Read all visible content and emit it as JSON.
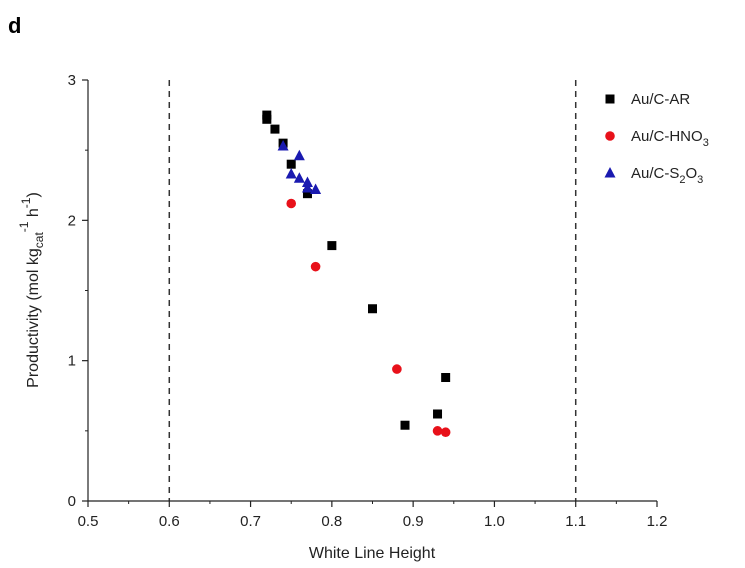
{
  "panel_label": "d",
  "chart_data": {
    "type": "scatter",
    "title": "",
    "xlabel": "White Line Height",
    "ylabel": {
      "main": "Productivity (mol kg",
      "sub_cat": "cat",
      "sup_neg1a": "-1",
      "mid": " h",
      "sup_neg1b": "-1",
      "tail": ")"
    },
    "xlim": [
      0.5,
      1.2
    ],
    "ylim": [
      0,
      3
    ],
    "xticks": [
      "0.5",
      "0.6",
      "0.7",
      "0.8",
      "0.9",
      "1.0",
      "1.1",
      "1.2"
    ],
    "yticks": [
      "0",
      "1",
      "2",
      "3"
    ],
    "reference_lines_x": [
      0.6,
      1.1
    ],
    "grid": false,
    "legend_position": "top-right",
    "series": [
      {
        "name": "Au/C-AR",
        "name_parts": [
          "Au/C-AR"
        ],
        "marker": "square",
        "color": "#000000",
        "points": [
          [
            0.72,
            2.75
          ],
          [
            0.72,
            2.72
          ],
          [
            0.73,
            2.65
          ],
          [
            0.74,
            2.55
          ],
          [
            0.75,
            2.4
          ],
          [
            0.77,
            2.19
          ],
          [
            0.8,
            1.82
          ],
          [
            0.85,
            1.37
          ],
          [
            0.89,
            0.54
          ],
          [
            0.93,
            0.62
          ],
          [
            0.94,
            0.88
          ]
        ]
      },
      {
        "name": "Au/C-HNO3",
        "name_parts": [
          "Au/C-HNO",
          "3"
        ],
        "marker": "circle",
        "color": "#e8111a",
        "points": [
          [
            0.75,
            2.12
          ],
          [
            0.78,
            1.67
          ],
          [
            0.88,
            0.94
          ],
          [
            0.93,
            0.5
          ],
          [
            0.94,
            0.49
          ]
        ]
      },
      {
        "name": "Au/C-S2O3",
        "name_parts": [
          "Au/C-S",
          "2",
          "O",
          "3"
        ],
        "marker": "triangle",
        "color": "#1a1ab0",
        "points": [
          [
            0.74,
            2.53
          ],
          [
            0.76,
            2.46
          ],
          [
            0.75,
            2.33
          ],
          [
            0.76,
            2.3
          ],
          [
            0.77,
            2.27
          ],
          [
            0.77,
            2.23
          ],
          [
            0.78,
            2.22
          ]
        ]
      }
    ]
  }
}
